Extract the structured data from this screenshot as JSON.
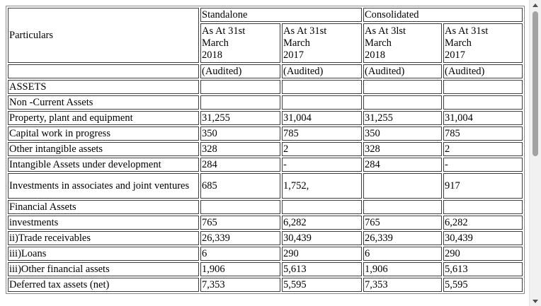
{
  "table": {
    "particulars_header": "Particulars",
    "group_headers": [
      "Standalone",
      "Consolidated"
    ],
    "period_headers": [
      [
        "As At 31st",
        "March",
        "2018"
      ],
      [
        "As At 31st",
        "March",
        "2017"
      ],
      [
        "As At 3lst",
        "March",
        "2018"
      ],
      [
        "As At 31st",
        "March",
        "2017"
      ]
    ],
    "status_labels": [
      "(Audited)",
      "(Audited)",
      "(Audited)",
      "(Audited)"
    ],
    "rows": [
      {
        "label": "ASSETS",
        "values": [
          "",
          "",
          "",
          ""
        ]
      },
      {
        "label": "Non -Current Assets",
        "values": [
          "",
          "",
          "",
          ""
        ]
      },
      {
        "label": "Property, plant and equipment",
        "values": [
          "31,255",
          "31,004",
          "31,255",
          "31,004"
        ]
      },
      {
        "label": "Capital work in progress",
        "values": [
          "350",
          "785",
          "350",
          "785"
        ]
      },
      {
        "label": "Other intangible assets",
        "values": [
          "328",
          "2",
          "328",
          "2"
        ]
      },
      {
        "label": "Intangible Assets under development",
        "values": [
          "284",
          "-",
          "284",
          "-"
        ]
      },
      {
        "label": "Investments in associates and joint ventures",
        "values": [
          "685",
          "1,752,",
          "",
          "917"
        ]
      },
      {
        "label": "Financial Assets",
        "values": [
          "",
          "",
          "",
          ""
        ]
      },
      {
        "label": "investments",
        "values": [
          "765",
          "6,282",
          "765",
          "6,282"
        ]
      },
      {
        "label": "ii)Trade receivables",
        "values": [
          "26,339",
          "30,439",
          "26,339",
          "30,439"
        ]
      },
      {
        "label": "iii)Loans",
        "values": [
          "6",
          "290",
          "6",
          "290"
        ]
      },
      {
        "label": "iii)Other financial assets",
        "values": [
          "1,906",
          "5,613",
          "1,906",
          "5,613"
        ]
      },
      {
        "label": "Deferred tax assets (net)",
        "values": [
          "7,353",
          "5,595",
          "7,353",
          "5,595"
        ]
      }
    ]
  }
}
